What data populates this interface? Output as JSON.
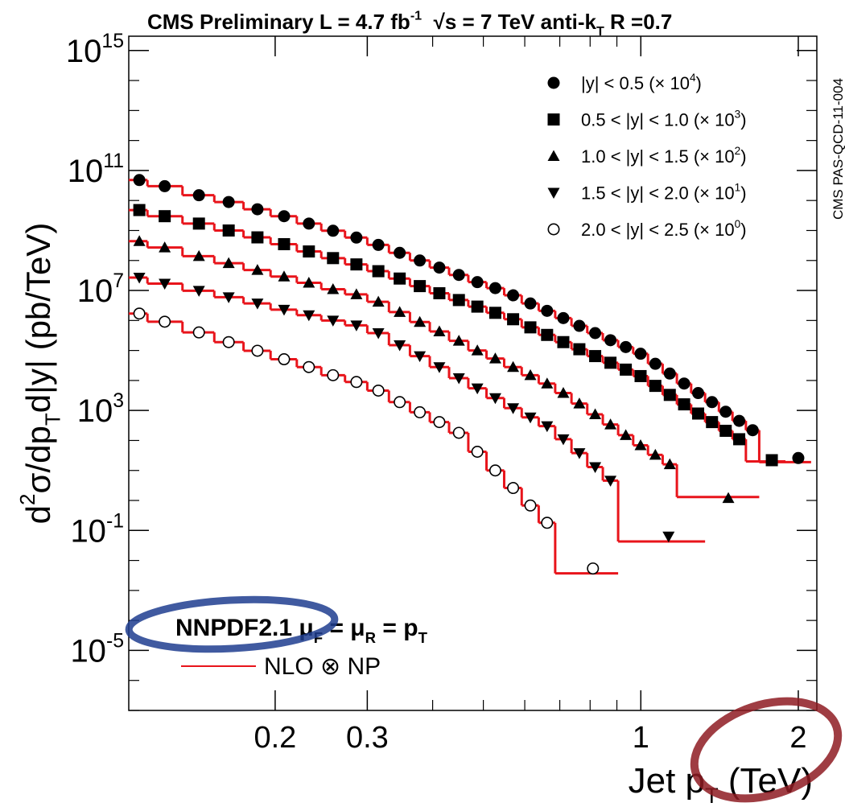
{
  "chart_data": {
    "type": "step-scatter",
    "title": [
      "CMS Preliminary L = 4.7 fb",
      "-1",
      "  √s = 7 TeV anti-k",
      "T",
      " R =0.7"
    ],
    "side_label": "CMS PAS-QCD-11-004",
    "y_label": [
      "d",
      "2",
      "σ/dp",
      "T",
      "d|y| (pb/TeV)"
    ],
    "x_label": [
      "Jet p",
      "T",
      " (TeV)"
    ],
    "annotation": [
      "NNPDF2.1",
      " μ",
      "F",
      " = μ",
      "R",
      " = p",
      "T"
    ],
    "theory_label": "NLO ⊗ NP",
    "theory_color": "#e8141b",
    "log_x": true,
    "log_y": true,
    "xlim": [
      0.105,
      2.17
    ],
    "ylim": [
      1e-07,
      3000000000000000.0
    ],
    "xticks": [
      0.2,
      0.3,
      1,
      2
    ],
    "yticks": [
      {
        "value": 1000000000000000.0,
        "label": "10",
        "power": "15"
      },
      {
        "value": 100000000000.0,
        "label": "10",
        "power": "11"
      },
      {
        "value": 10000000.0,
        "label": "10",
        "power": "7"
      },
      {
        "value": 1000.0,
        "label": "10",
        "power": "3"
      },
      {
        "value": 0.1,
        "label": "10",
        "power": "-1"
      },
      {
        "value": 1e-05,
        "label": "10",
        "power": "-5"
      }
    ],
    "legend": "upper right",
    "series": [
      {
        "name": "|y| < 0.5 (× 10",
        "name_power": "4",
        "name_end": ")",
        "marker": "circle",
        "color": "#000000",
        "x": [
          0.11,
          0.123,
          0.143,
          0.163,
          0.185,
          0.208,
          0.232,
          0.258,
          0.286,
          0.315,
          0.346,
          0.378,
          0.412,
          0.449,
          0.487,
          0.527,
          0.57,
          0.615,
          0.662,
          0.711,
          0.763,
          0.818,
          0.875,
          0.936,
          0.999,
          1.066,
          1.136,
          1.21,
          1.287,
          1.368,
          1.453,
          1.542,
          1.636,
          2.0
        ],
        "values": [
          48000000000.0,
          30000000000.0,
          15000000000.0,
          8900000000.0,
          5100000000.0,
          3000000000.0,
          1700000000.0,
          980000000.0,
          580000000.0,
          330000000.0,
          180000000.0,
          100000000.0,
          58000000.0,
          33000000.0,
          19000000.0,
          12000000.0,
          6900000.0,
          3700000.0,
          2100000.0,
          1200000.0,
          660000.0,
          380000.0,
          220000.0,
          130000.0,
          78000.0,
          36000.0,
          17000.0,
          7900.0,
          3800.0,
          1900.0,
          910,
          450,
          220,
          26
        ],
        "bins": [
          0.105,
          0.114,
          0.133,
          0.153,
          0.174,
          0.196,
          0.22,
          0.245,
          0.272,
          0.3,
          0.33,
          0.362,
          0.395,
          0.43,
          0.468,
          0.507,
          0.548,
          0.592,
          0.638,
          0.686,
          0.737,
          0.79,
          0.846,
          0.905,
          0.967,
          1.032,
          1.101,
          1.172,
          1.248,
          1.327,
          1.41,
          1.497,
          1.588,
          1.684,
          2.116
        ],
        "theory": [
          48000000000.0,
          30000000000.0,
          15000000000.0,
          8900000000.0,
          5100000000.0,
          3000000000.0,
          1700000000.0,
          980000000.0,
          580000000.0,
          330000000.0,
          180000000.0,
          100000000.0,
          58000000.0,
          33000000.0,
          19000000.0,
          12000000.0,
          6900000.0,
          3700000.0,
          2100000.0,
          1200000.0,
          660000.0,
          380000.0,
          220000.0,
          130000.0,
          78000.0,
          36000.0,
          17000.0,
          7900.0,
          3800.0,
          1900.0,
          910,
          450,
          220,
          19
        ]
      },
      {
        "name": "0.5 < |y| < 1.0 (× 10",
        "name_power": "3",
        "name_end": ")",
        "marker": "square",
        "color": "#000000",
        "x": [
          0.11,
          0.123,
          0.143,
          0.163,
          0.185,
          0.208,
          0.232,
          0.258,
          0.286,
          0.315,
          0.346,
          0.378,
          0.412,
          0.449,
          0.487,
          0.527,
          0.57,
          0.615,
          0.662,
          0.711,
          0.763,
          0.818,
          0.875,
          0.936,
          0.999,
          1.066,
          1.136,
          1.21,
          1.287,
          1.368,
          1.453,
          1.542,
          1.78
        ],
        "values": [
          4800000000.0,
          3000000000.0,
          1700000000.0,
          1000000000.0,
          590000000.0,
          350000000.0,
          200000000.0,
          120000000.0,
          74000000.0,
          44000000.0,
          25000000.0,
          14000000.0,
          8100000.0,
          4800000.0,
          2900000.0,
          1800000.0,
          1100000.0,
          590000.0,
          330000.0,
          190000.0,
          110000.0,
          65000.0,
          39000.0,
          23000.0,
          14000.0,
          6600.0,
          3300.0,
          1600.0,
          790,
          410,
          210,
          110,
          22
        ],
        "bins": [
          0.105,
          0.114,
          0.133,
          0.153,
          0.174,
          0.196,
          0.22,
          0.245,
          0.272,
          0.3,
          0.33,
          0.362,
          0.395,
          0.43,
          0.468,
          0.507,
          0.548,
          0.592,
          0.638,
          0.686,
          0.737,
          0.79,
          0.846,
          0.905,
          0.967,
          1.032,
          1.101,
          1.172,
          1.248,
          1.327,
          1.41,
          1.497,
          1.588,
          1.89
        ],
        "theory": [
          4800000000.0,
          3000000000.0,
          1700000000.0,
          1000000000.0,
          590000000.0,
          350000000.0,
          200000000.0,
          120000000.0,
          74000000.0,
          44000000.0,
          25000000.0,
          14000000.0,
          8100000.0,
          4800000.0,
          2900000.0,
          1800000.0,
          1100000.0,
          590000.0,
          330000.0,
          190000.0,
          110000.0,
          65000.0,
          39000.0,
          23000.0,
          14000.0,
          6600.0,
          3300.0,
          1600.0,
          790,
          410,
          210,
          110,
          20
        ]
      },
      {
        "name": "1.0 < |y| < 1.5 (× 10",
        "name_power": "2",
        "name_end": ")",
        "marker": "triangle-up",
        "color": "#000000",
        "x": [
          0.11,
          0.123,
          0.143,
          0.163,
          0.185,
          0.208,
          0.232,
          0.258,
          0.286,
          0.315,
          0.346,
          0.378,
          0.412,
          0.449,
          0.487,
          0.527,
          0.57,
          0.615,
          0.662,
          0.711,
          0.763,
          0.818,
          0.875,
          0.936,
          0.999,
          1.066,
          1.136,
          1.47
        ],
        "values": [
          440000000.0,
          270000000.0,
          140000000.0,
          81000000.0,
          48000000.0,
          29000000.0,
          18000000.0,
          11000000.0,
          7400000.0,
          4200000.0,
          1900000.0,
          890000.0,
          430000.0,
          210000.0,
          100000.0,
          54000.0,
          28000.0,
          15000.0,
          7900.0,
          3800.0,
          1700.0,
          740,
          340,
          150,
          69,
          33,
          16,
          1.2
        ],
        "bins": [
          0.105,
          0.114,
          0.133,
          0.153,
          0.174,
          0.196,
          0.22,
          0.245,
          0.272,
          0.3,
          0.33,
          0.362,
          0.395,
          0.43,
          0.468,
          0.507,
          0.548,
          0.592,
          0.638,
          0.686,
          0.737,
          0.79,
          0.846,
          0.905,
          0.967,
          1.032,
          1.101,
          1.172,
          1.684
        ],
        "theory": [
          440000000.0,
          270000000.0,
          140000000.0,
          81000000.0,
          48000000.0,
          29000000.0,
          18000000.0,
          11000000.0,
          7400000.0,
          4200000.0,
          1900000.0,
          890000.0,
          430000.0,
          210000.0,
          100000.0,
          54000.0,
          28000.0,
          15000.0,
          7900.0,
          3800.0,
          1700.0,
          740,
          340,
          150,
          69,
          33,
          16,
          1.3
        ]
      },
      {
        "name": "1.5 < |y| < 2.0 (× 10",
        "name_power": "1",
        "name_end": ")",
        "marker": "triangle-down",
        "color": "#000000",
        "x": [
          0.11,
          0.123,
          0.143,
          0.163,
          0.185,
          0.208,
          0.232,
          0.258,
          0.286,
          0.315,
          0.346,
          0.378,
          0.412,
          0.449,
          0.487,
          0.527,
          0.57,
          0.615,
          0.662,
          0.711,
          0.763,
          0.818,
          0.875,
          1.13
        ],
        "values": [
          27000000.0,
          17000000.0,
          9800000.0,
          6000000.0,
          3700000.0,
          2300000.0,
          1500000.0,
          1000000.0,
          690000.0,
          380000.0,
          150000.0,
          65000.0,
          28000.0,
          12000.0,
          5500.0,
          2600.0,
          1200.0,
          590,
          300,
          110,
          38,
          13,
          4.6,
          0.063
        ],
        "bins": [
          0.105,
          0.114,
          0.133,
          0.153,
          0.174,
          0.196,
          0.22,
          0.245,
          0.272,
          0.3,
          0.33,
          0.362,
          0.395,
          0.43,
          0.468,
          0.507,
          0.548,
          0.592,
          0.638,
          0.686,
          0.737,
          0.79,
          0.846,
          0.905,
          1.327
        ],
        "theory": [
          27000000.0,
          17000000.0,
          9800000.0,
          6000000.0,
          3700000.0,
          2300000.0,
          1500000.0,
          1000000.0,
          690000.0,
          380000.0,
          150000.0,
          65000.0,
          28000.0,
          12000.0,
          5500.0,
          2600.0,
          1200.0,
          590,
          300,
          110,
          38,
          13,
          4.6,
          0.043
        ]
      },
      {
        "name": "2.0 < |y| < 2.5 (× 10",
        "name_power": "0",
        "name_end": ")",
        "marker": "circle-open",
        "color": "#000000",
        "x": [
          0.11,
          0.123,
          0.143,
          0.163,
          0.185,
          0.208,
          0.232,
          0.258,
          0.286,
          0.315,
          0.346,
          0.378,
          0.412,
          0.449,
          0.487,
          0.527,
          0.57,
          0.615,
          0.662,
          0.81
        ],
        "values": [
          1700000.0,
          910000.0,
          400000.0,
          190000.0,
          98000.0,
          51000.0,
          28000.0,
          15000.0,
          8900.0,
          4600.0,
          1900.0,
          870,
          410,
          180,
          42,
          10,
          2.6,
          0.68,
          0.18,
          0.0054
        ],
        "bins": [
          0.105,
          0.114,
          0.133,
          0.153,
          0.174,
          0.196,
          0.22,
          0.245,
          0.272,
          0.3,
          0.33,
          0.362,
          0.395,
          0.43,
          0.468,
          0.507,
          0.548,
          0.592,
          0.638,
          0.686,
          0.905
        ],
        "theory": [
          1700000.0,
          910000.0,
          400000.0,
          190000.0,
          98000.0,
          51000.0,
          28000.0,
          15000.0,
          8900.0,
          4600.0,
          1900.0,
          870,
          410,
          180,
          42,
          10,
          2.6,
          0.68,
          0.18,
          0.0037
        ]
      }
    ]
  }
}
